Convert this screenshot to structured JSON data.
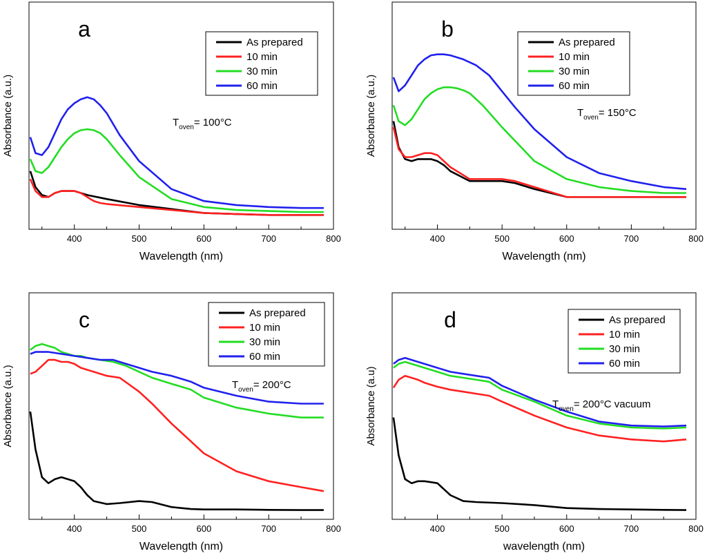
{
  "chart_data": [
    {
      "type": "line",
      "panel_label": "a",
      "xlabel": "Wavelength (nm)",
      "ylabel": "Absorbance (a.u.)",
      "xlim": [
        330,
        800
      ],
      "ylim": [
        0,
        1
      ],
      "xticks": [
        "400",
        "500",
        "600",
        "700",
        "800"
      ],
      "annotation": {
        "prefix": "T",
        "sub": "oven",
        "suffix": "= 100°C"
      },
      "series": [
        {
          "name": "As prepared",
          "color": "#000000",
          "x": [
            332,
            340,
            350,
            360,
            370,
            380,
            390,
            400,
            410,
            420,
            450,
            500,
            550,
            600,
            650,
            700,
            750,
            785
          ],
          "y": [
            0.25,
            0.17,
            0.13,
            0.12,
            0.14,
            0.15,
            0.15,
            0.15,
            0.14,
            0.13,
            0.11,
            0.08,
            0.06,
            0.04,
            0.035,
            0.03,
            0.03,
            0.03
          ]
        },
        {
          "name": "10 min",
          "color": "#ff2020",
          "x": [
            332,
            340,
            350,
            360,
            370,
            380,
            390,
            400,
            410,
            420,
            430,
            440,
            450,
            500,
            550,
            600,
            650,
            700,
            750,
            785
          ],
          "y": [
            0.21,
            0.15,
            0.12,
            0.12,
            0.14,
            0.15,
            0.15,
            0.15,
            0.14,
            0.12,
            0.1,
            0.09,
            0.085,
            0.07,
            0.055,
            0.04,
            0.035,
            0.03,
            0.03,
            0.03
          ]
        },
        {
          "name": "30 min",
          "color": "#22dd22",
          "x": [
            332,
            340,
            350,
            360,
            370,
            380,
            390,
            400,
            410,
            420,
            430,
            440,
            450,
            470,
            500,
            550,
            600,
            650,
            700,
            750,
            785
          ],
          "y": [
            0.31,
            0.25,
            0.24,
            0.27,
            0.32,
            0.37,
            0.41,
            0.44,
            0.455,
            0.46,
            0.455,
            0.44,
            0.41,
            0.33,
            0.22,
            0.11,
            0.07,
            0.055,
            0.05,
            0.045,
            0.045
          ]
        },
        {
          "name": "60 min",
          "color": "#2020ee",
          "x": [
            332,
            340,
            350,
            360,
            370,
            380,
            390,
            400,
            410,
            420,
            430,
            440,
            450,
            470,
            500,
            550,
            600,
            650,
            700,
            750,
            785
          ],
          "y": [
            0.42,
            0.34,
            0.33,
            0.37,
            0.44,
            0.51,
            0.56,
            0.59,
            0.61,
            0.62,
            0.61,
            0.58,
            0.54,
            0.43,
            0.3,
            0.16,
            0.1,
            0.08,
            0.07,
            0.065,
            0.065
          ]
        }
      ]
    },
    {
      "type": "line",
      "panel_label": "b",
      "xlabel": "Wavelength (nm)",
      "ylabel": "Absorbance (a.u.)",
      "xlim": [
        330,
        800
      ],
      "ylim": [
        0,
        1
      ],
      "xticks": [
        "400",
        "500",
        "600",
        "700",
        "800"
      ],
      "annotation": {
        "prefix": "T",
        "sub": "oven",
        "suffix": "= 150°C"
      },
      "series": [
        {
          "name": "As prepared",
          "color": "#000000",
          "x": [
            332,
            340,
            350,
            360,
            370,
            380,
            390,
            400,
            410,
            420,
            450,
            480,
            500,
            520,
            550,
            600,
            650,
            700,
            750,
            785
          ],
          "y": [
            0.5,
            0.37,
            0.31,
            0.3,
            0.31,
            0.31,
            0.31,
            0.3,
            0.28,
            0.25,
            0.2,
            0.2,
            0.2,
            0.19,
            0.16,
            0.12,
            0.12,
            0.12,
            0.12,
            0.12
          ]
        },
        {
          "name": "10 min",
          "color": "#ff2020",
          "x": [
            332,
            340,
            350,
            360,
            370,
            380,
            390,
            400,
            410,
            420,
            450,
            480,
            500,
            520,
            550,
            600,
            650,
            700,
            750,
            785
          ],
          "y": [
            0.47,
            0.36,
            0.32,
            0.32,
            0.33,
            0.34,
            0.34,
            0.33,
            0.3,
            0.27,
            0.21,
            0.21,
            0.21,
            0.2,
            0.17,
            0.12,
            0.12,
            0.12,
            0.12,
            0.12
          ]
        },
        {
          "name": "30 min",
          "color": "#22dd22",
          "x": [
            332,
            340,
            350,
            360,
            370,
            380,
            390,
            400,
            410,
            420,
            430,
            440,
            450,
            470,
            500,
            550,
            600,
            650,
            700,
            750,
            785
          ],
          "y": [
            0.58,
            0.5,
            0.48,
            0.51,
            0.56,
            0.61,
            0.64,
            0.66,
            0.67,
            0.67,
            0.665,
            0.655,
            0.64,
            0.58,
            0.47,
            0.3,
            0.21,
            0.17,
            0.15,
            0.14,
            0.14
          ]
        },
        {
          "name": "60 min",
          "color": "#2020ee",
          "x": [
            332,
            340,
            350,
            360,
            370,
            380,
            390,
            400,
            410,
            420,
            440,
            460,
            480,
            500,
            520,
            550,
            600,
            650,
            700,
            750,
            785
          ],
          "y": [
            0.72,
            0.65,
            0.68,
            0.73,
            0.78,
            0.81,
            0.83,
            0.835,
            0.835,
            0.83,
            0.81,
            0.78,
            0.73,
            0.65,
            0.57,
            0.46,
            0.32,
            0.24,
            0.2,
            0.17,
            0.16
          ]
        }
      ]
    },
    {
      "type": "line",
      "panel_label": "c",
      "xlabel": "Wavelength (nm)",
      "ylabel": "Absorbance (a.u.)",
      "xlim": [
        330,
        800
      ],
      "ylim": [
        0,
        1
      ],
      "xticks": [
        "400",
        "500",
        "600",
        "700",
        "800"
      ],
      "annotation": {
        "prefix": "T",
        "sub": "oven",
        "suffix": "= 200°C"
      },
      "series": [
        {
          "name": "As prepared",
          "color": "#000000",
          "x": [
            332,
            340,
            350,
            360,
            370,
            380,
            390,
            400,
            410,
            420,
            430,
            450,
            470,
            500,
            520,
            550,
            580,
            600,
            650,
            700,
            750,
            785
          ],
          "y": [
            0.5,
            0.31,
            0.17,
            0.14,
            0.16,
            0.17,
            0.16,
            0.15,
            0.12,
            0.08,
            0.05,
            0.035,
            0.04,
            0.05,
            0.045,
            0.02,
            0.01,
            0.008,
            0.008,
            0.006,
            0.005,
            0.005
          ]
        },
        {
          "name": "10 min",
          "color": "#ff2020",
          "x": [
            332,
            340,
            350,
            360,
            370,
            380,
            390,
            400,
            410,
            420,
            430,
            450,
            470,
            500,
            520,
            550,
            580,
            600,
            650,
            700,
            750,
            785
          ],
          "y": [
            0.69,
            0.7,
            0.73,
            0.76,
            0.76,
            0.75,
            0.75,
            0.74,
            0.72,
            0.71,
            0.7,
            0.68,
            0.67,
            0.6,
            0.54,
            0.44,
            0.35,
            0.29,
            0.2,
            0.15,
            0.12,
            0.1
          ]
        },
        {
          "name": "30 min",
          "color": "#22dd22",
          "x": [
            332,
            340,
            350,
            360,
            370,
            380,
            390,
            400,
            410,
            420,
            440,
            460,
            480,
            500,
            520,
            550,
            580,
            600,
            650,
            700,
            750,
            785
          ],
          "y": [
            0.81,
            0.83,
            0.84,
            0.83,
            0.82,
            0.8,
            0.79,
            0.78,
            0.78,
            0.77,
            0.76,
            0.75,
            0.73,
            0.7,
            0.67,
            0.64,
            0.61,
            0.57,
            0.52,
            0.49,
            0.47,
            0.47
          ]
        },
        {
          "name": "60 min",
          "color": "#2020ee",
          "x": [
            332,
            340,
            350,
            360,
            370,
            380,
            390,
            400,
            420,
            440,
            460,
            480,
            500,
            520,
            550,
            580,
            600,
            650,
            700,
            750,
            785
          ],
          "y": [
            0.79,
            0.8,
            0.8,
            0.8,
            0.795,
            0.79,
            0.785,
            0.78,
            0.77,
            0.76,
            0.76,
            0.74,
            0.72,
            0.7,
            0.68,
            0.65,
            0.62,
            0.58,
            0.55,
            0.54,
            0.54
          ]
        }
      ]
    },
    {
      "type": "line",
      "panel_label": "d",
      "xlabel": "wavelength (nm)",
      "ylabel": "Absorbance (a.u)",
      "xlim": [
        330,
        800
      ],
      "ylim": [
        0,
        1
      ],
      "xticks": [
        "400",
        "500",
        "600",
        "700",
        "800"
      ],
      "annotation": {
        "prefix": "T",
        "sub": "oven",
        "suffix": "= 200°C vacuum"
      },
      "series": [
        {
          "name": "As prepared",
          "color": "#000000",
          "x": [
            332,
            340,
            350,
            360,
            370,
            380,
            390,
            400,
            410,
            420,
            440,
            460,
            500,
            550,
            600,
            650,
            700,
            750,
            785
          ],
          "y": [
            0.47,
            0.28,
            0.16,
            0.14,
            0.15,
            0.15,
            0.145,
            0.14,
            0.11,
            0.08,
            0.05,
            0.045,
            0.04,
            0.03,
            0.015,
            0.01,
            0.008,
            0.006,
            0.005
          ]
        },
        {
          "name": "10 min",
          "color": "#ff2020",
          "x": [
            332,
            340,
            350,
            360,
            370,
            380,
            390,
            400,
            420,
            440,
            460,
            480,
            500,
            550,
            600,
            650,
            700,
            750,
            785
          ],
          "y": [
            0.62,
            0.66,
            0.68,
            0.67,
            0.66,
            0.645,
            0.635,
            0.625,
            0.61,
            0.6,
            0.59,
            0.58,
            0.55,
            0.48,
            0.42,
            0.38,
            0.36,
            0.35,
            0.36
          ]
        },
        {
          "name": "30 min",
          "color": "#22dd22",
          "x": [
            332,
            340,
            350,
            360,
            370,
            380,
            390,
            400,
            420,
            440,
            460,
            480,
            500,
            550,
            600,
            650,
            700,
            750,
            785
          ],
          "y": [
            0.72,
            0.74,
            0.75,
            0.74,
            0.73,
            0.72,
            0.71,
            0.7,
            0.68,
            0.67,
            0.66,
            0.65,
            0.61,
            0.55,
            0.48,
            0.44,
            0.42,
            0.415,
            0.42
          ]
        },
        {
          "name": "60 min",
          "color": "#2020ee",
          "x": [
            332,
            340,
            350,
            360,
            370,
            380,
            390,
            400,
            420,
            440,
            460,
            480,
            500,
            550,
            600,
            650,
            700,
            750,
            785
          ],
          "y": [
            0.74,
            0.76,
            0.77,
            0.76,
            0.75,
            0.74,
            0.73,
            0.72,
            0.7,
            0.69,
            0.68,
            0.67,
            0.63,
            0.56,
            0.5,
            0.45,
            0.43,
            0.425,
            0.43
          ]
        }
      ]
    }
  ]
}
